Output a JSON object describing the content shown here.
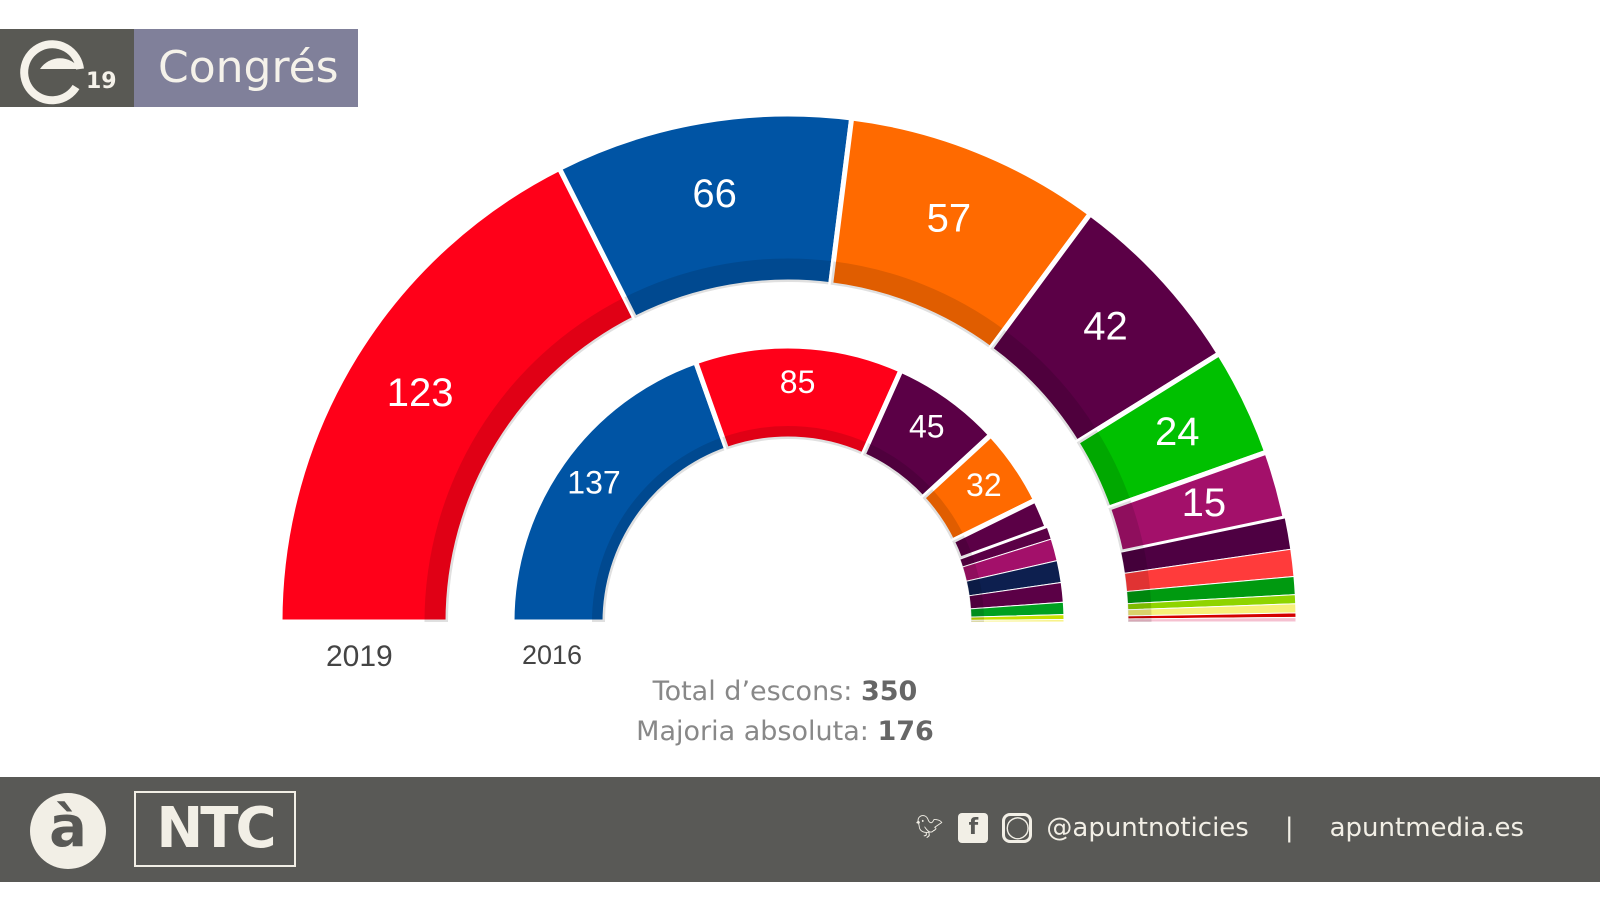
{
  "header": {
    "title": "Congrés",
    "logo_text": "19"
  },
  "chart_data": {
    "type": "pie",
    "subtype": "hemicycle",
    "series": [
      {
        "name": "2019",
        "values": [
          123,
          66,
          57,
          42,
          24,
          15,
          7,
          6,
          4,
          2,
          2,
          1,
          1
        ],
        "colors": [
          "#ff0019",
          "#0054a4",
          "#ff6a00",
          "#5b0046",
          "#00c000",
          "#a3106a",
          "#4e0042",
          "#ff3b3b",
          "#009a10",
          "#8fd400",
          "#f7f07a",
          "#d40000",
          "#f5c0d0"
        ],
        "labels": [
          "123",
          "66",
          "57",
          "42",
          "24",
          "15"
        ]
      },
      {
        "name": "2016",
        "values": [
          137,
          85,
          45,
          32,
          12,
          5,
          9,
          9,
          8,
          5,
          2,
          1
        ],
        "colors": [
          "#0054a4",
          "#ff0019",
          "#5b0046",
          "#ff6a00",
          "#5b0046",
          "#5b0046",
          "#a3106a",
          "#0d1f4f",
          "#5b0046",
          "#00a020",
          "#c8e000",
          "#f7f07a"
        ],
        "labels": [
          "137",
          "85",
          "45",
          "32"
        ]
      }
    ],
    "total_label": "Total d’escons:",
    "total": "350",
    "majority_label": "Majoria absoluta:",
    "majority": "176"
  },
  "footer": {
    "brand_logo": "à",
    "ntc": "NTC",
    "handle": "@apuntnoticies",
    "separator": "|",
    "website": "apuntmedia.es"
  }
}
